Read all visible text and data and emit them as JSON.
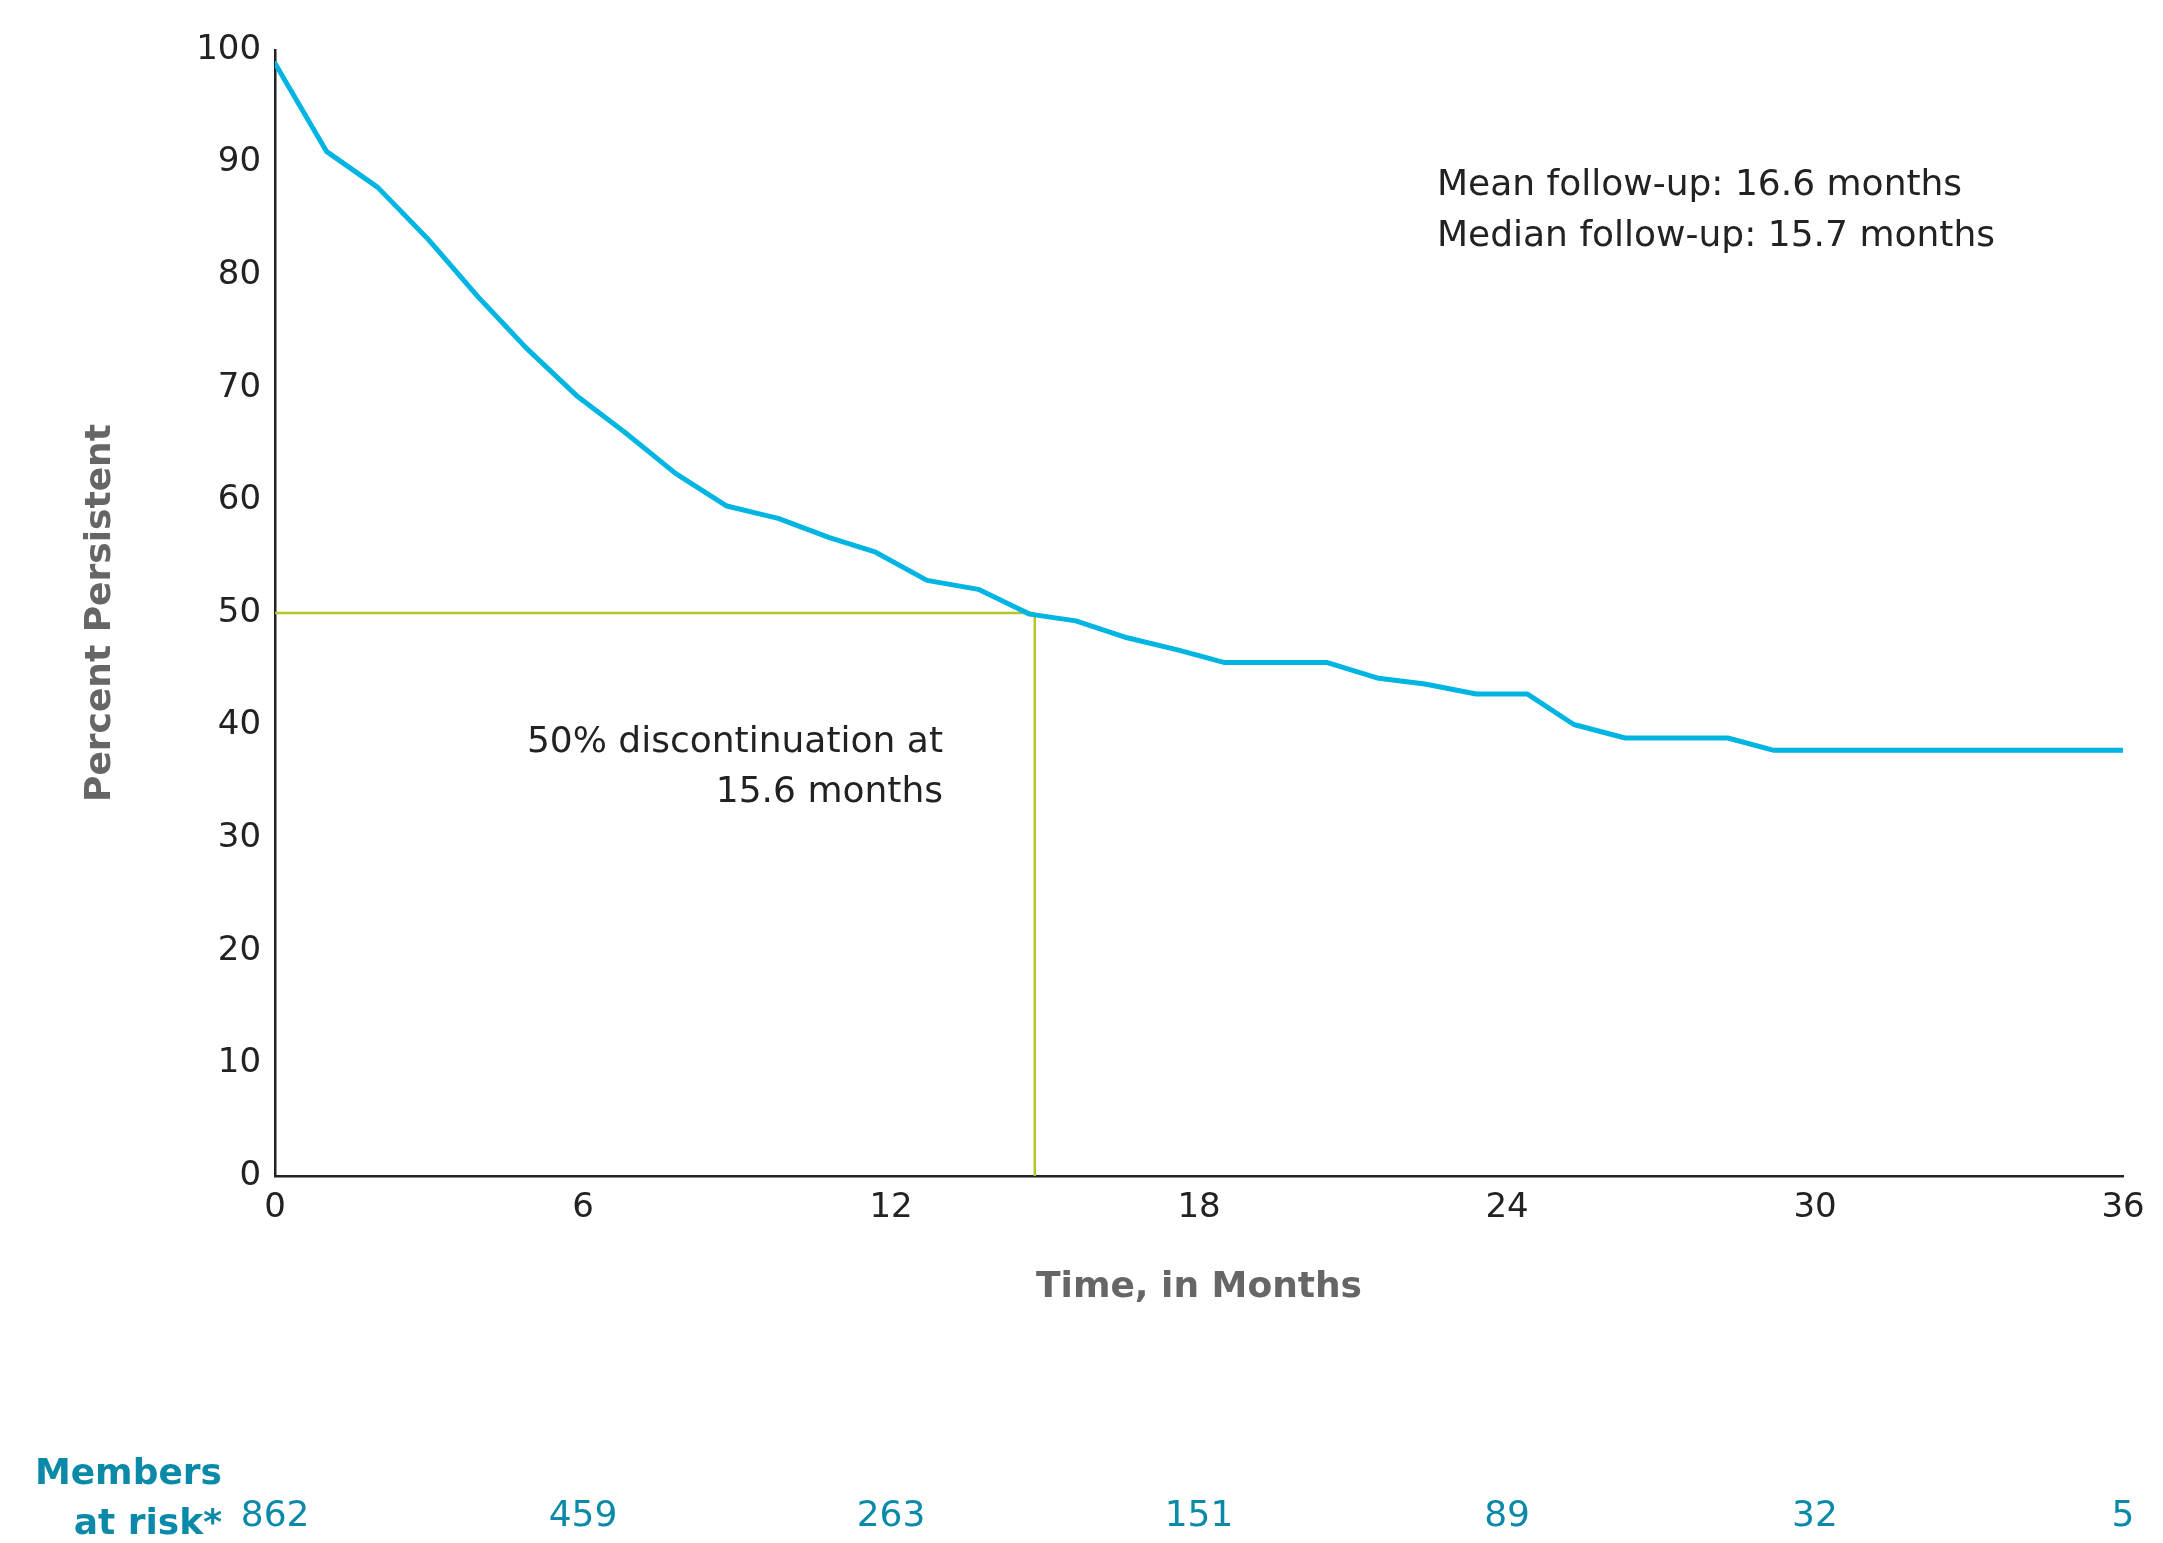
{
  "chart_data": {
    "type": "line",
    "xlabel": "Time, in Months",
    "ylabel": "Percent Persistent",
    "x": [
      0,
      1.0,
      2.0,
      3.0,
      3.95,
      4.9,
      5.9,
      6.8,
      7.8,
      8.8,
      9.8,
      10.8,
      11.7,
      12.7,
      13.7,
      14.7,
      15.6,
      16.6,
      17.6,
      18.5,
      20.5,
      21.5,
      22.4,
      23.4,
      24.4,
      25.3,
      26.3,
      28.3,
      29.2,
      36
    ],
    "series": [
      {
        "color": "#00b5e2",
        "values": [
          98.8,
          91.0,
          87.8,
          83.1,
          78.1,
          73.5,
          69.2,
          66.1,
          62.4,
          59.5,
          58.4,
          56.7,
          55.4,
          52.9,
          52.1,
          49.9,
          49.3,
          47.8,
          46.7,
          45.6,
          45.6,
          44.2,
          43.7,
          42.8,
          42.8,
          40.1,
          38.9,
          38.9,
          37.8,
          37.8
        ]
      }
    ],
    "xlim": [
      0,
      36
    ],
    "xticks": [
      0,
      6,
      12,
      18,
      24,
      30,
      36
    ],
    "ylim": [
      0,
      100
    ],
    "yticks": [
      0,
      10,
      20,
      30,
      40,
      50,
      60,
      70,
      80,
      90,
      100
    ],
    "grid": false,
    "legend": false,
    "marker": "none",
    "line_style": "solid",
    "ref_lines": [
      {
        "axis": "y",
        "value": 50,
        "color": "#b5c42a"
      },
      {
        "axis": "x",
        "value": 14.8,
        "color": "#b5c42a"
      }
    ],
    "annotations": [
      "Mean follow-up: 16.6 months",
      "Median follow-up: 15.7 months",
      "50% discontinuation at\n15.6 months",
      "Members\nat risk*",
      "862",
      "459",
      "263",
      "151",
      "89",
      "32",
      "5"
    ]
  }
}
